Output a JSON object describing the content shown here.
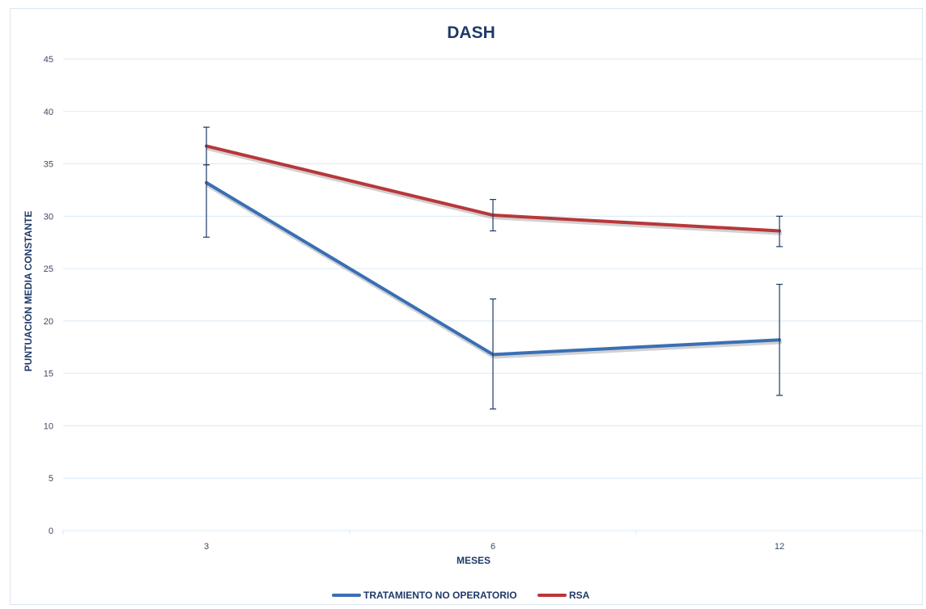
{
  "chart_data": {
    "type": "line",
    "title": "DASH",
    "xlabel": "MESES",
    "ylabel": "PUNTUACIÓN MEDIA CONSTANTE",
    "categories": [
      "3",
      "6",
      "12"
    ],
    "ylim": [
      0,
      45
    ],
    "yticks": [
      "0",
      "5",
      "10",
      "15",
      "20",
      "25",
      "30",
      "35",
      "40",
      "45"
    ],
    "grid": true,
    "legend_position": "bottom",
    "series": [
      {
        "name": "TRATAMIENTO NO OPERATORIO",
        "color": "#3a6fb5",
        "values": [
          33.2,
          16.8,
          18.2
        ],
        "error_low": [
          28.0,
          11.6,
          12.9
        ],
        "error_high": [
          34.9,
          22.1,
          23.5
        ]
      },
      {
        "name": "RSA",
        "color": "#b8373a",
        "values": [
          36.7,
          30.1,
          28.6
        ],
        "error_low": [
          34.9,
          28.6,
          27.1
        ],
        "error_high": [
          38.5,
          31.6,
          30.0
        ]
      }
    ],
    "error_bar_color": "#1f3a68",
    "gridline_color": "#dce9f5"
  }
}
